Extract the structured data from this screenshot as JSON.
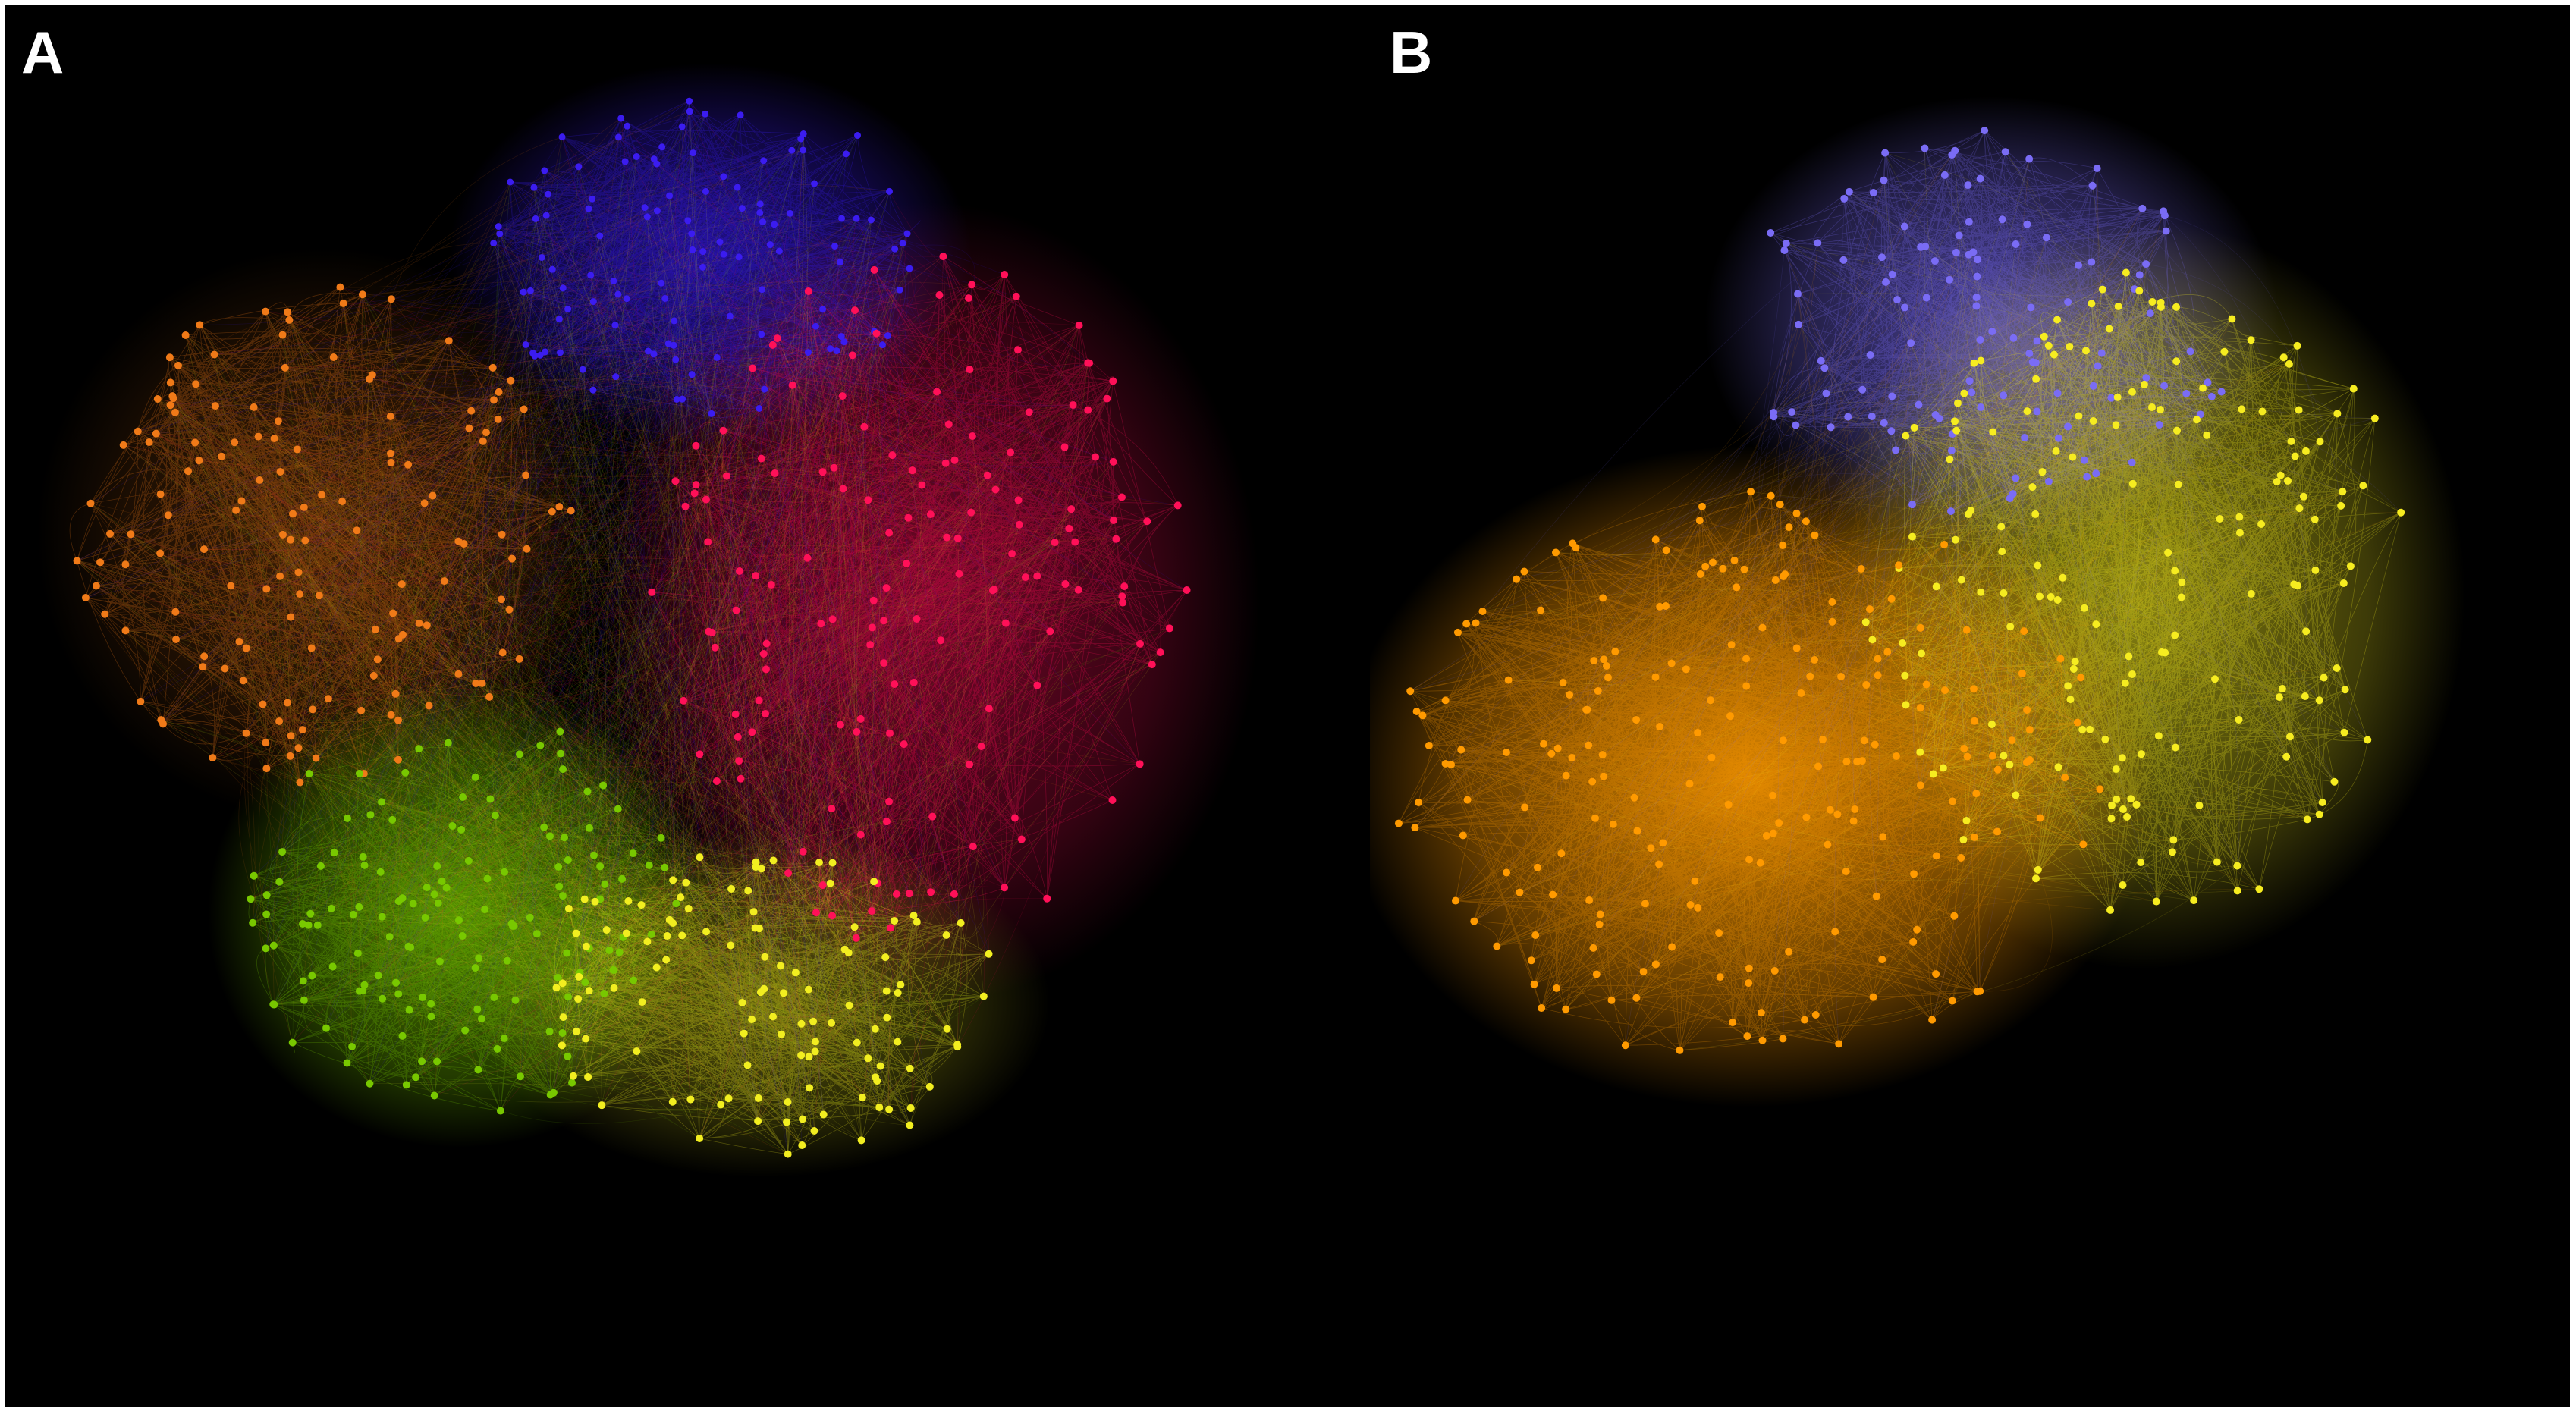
{
  "figure": {
    "background": "#000000",
    "panels": [
      {
        "id": "A",
        "label": "A",
        "communities": [
          {
            "name": "blue",
            "color": "#3b1cf0"
          },
          {
            "name": "magenta",
            "color": "#ff1058"
          },
          {
            "name": "orange",
            "color": "#f07a18"
          },
          {
            "name": "green",
            "color": "#78c800"
          },
          {
            "name": "yellow",
            "color": "#f2ee20"
          }
        ]
      },
      {
        "id": "B",
        "label": "B",
        "communities": [
          {
            "name": "lavender",
            "color": "#7a6cf5"
          },
          {
            "name": "yellow",
            "color": "#f6ec20"
          },
          {
            "name": "orange",
            "color": "#ff9a00"
          }
        ]
      }
    ]
  }
}
